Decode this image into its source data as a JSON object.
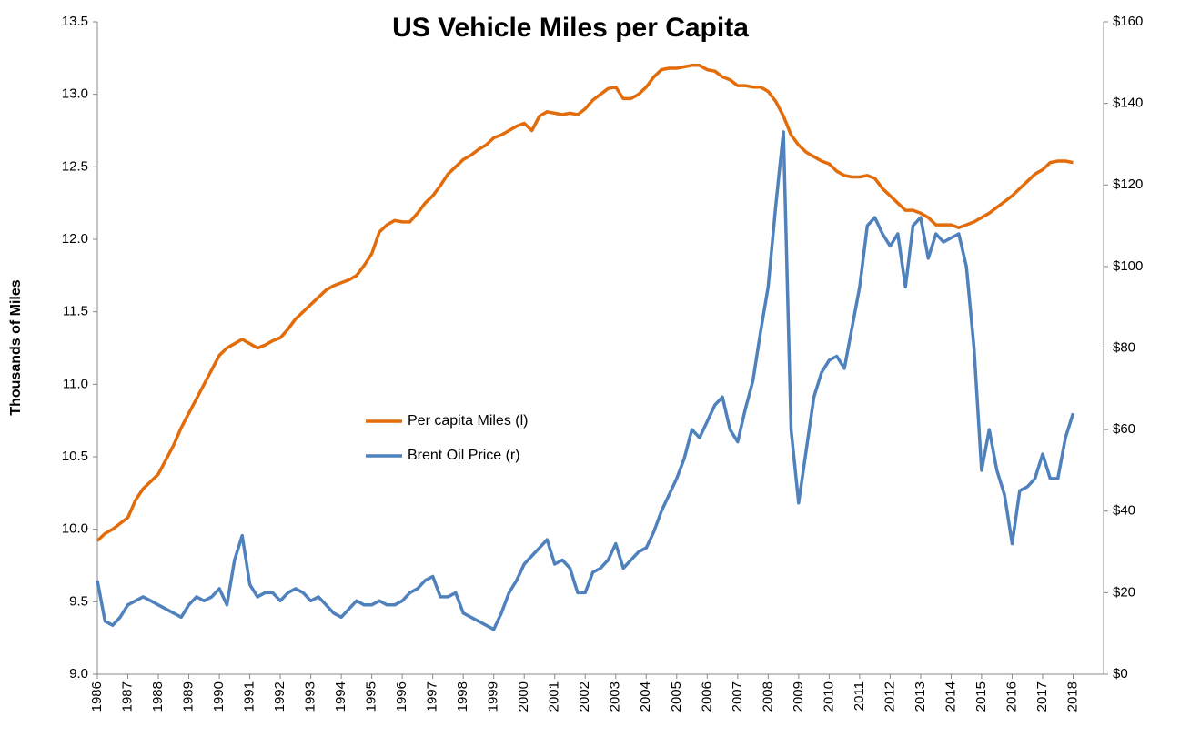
{
  "chart_data": {
    "type": "line",
    "title": "US Vehicle Miles per Capita",
    "y_label": "Thousands of Miles",
    "x": [
      1986,
      1986.25,
      1986.5,
      1986.75,
      1987,
      1987.25,
      1987.5,
      1987.75,
      1988,
      1988.25,
      1988.5,
      1988.75,
      1989,
      1989.25,
      1989.5,
      1989.75,
      1990,
      1990.25,
      1990.5,
      1990.75,
      1991,
      1991.25,
      1991.5,
      1991.75,
      1992,
      1992.25,
      1992.5,
      1992.75,
      1993,
      1993.25,
      1993.5,
      1993.75,
      1994,
      1994.25,
      1994.5,
      1994.75,
      1995,
      1995.25,
      1995.5,
      1995.75,
      1996,
      1996.25,
      1996.5,
      1996.75,
      1997,
      1997.25,
      1997.5,
      1997.75,
      1998,
      1998.25,
      1998.5,
      1998.75,
      1999,
      1999.25,
      1999.5,
      1999.75,
      2000,
      2000.25,
      2000.5,
      2000.75,
      2001,
      2001.25,
      2001.5,
      2001.75,
      2002,
      2002.25,
      2002.5,
      2002.75,
      2003,
      2003.25,
      2003.5,
      2003.75,
      2004,
      2004.25,
      2004.5,
      2004.75,
      2005,
      2005.25,
      2005.5,
      2005.75,
      2006,
      2006.25,
      2006.5,
      2006.75,
      2007,
      2007.25,
      2007.5,
      2007.75,
      2008,
      2008.25,
      2008.5,
      2008.75,
      2009,
      2009.25,
      2009.5,
      2009.75,
      2010,
      2010.25,
      2010.5,
      2010.75,
      2011,
      2011.25,
      2011.5,
      2011.75,
      2012,
      2012.25,
      2012.5,
      2012.75,
      2013,
      2013.25,
      2013.5,
      2013.75,
      2014,
      2014.25,
      2014.5,
      2014.75,
      2015,
      2015.25,
      2015.5,
      2015.75,
      2016,
      2016.25,
      2016.5,
      2016.75,
      2017,
      2017.25,
      2017.5,
      2017.75,
      2018
    ],
    "series": [
      {
        "name": "Per capita Miles (l)",
        "color": "#e36c0a",
        "axis": "y",
        "values": [
          9.92,
          9.97,
          10.0,
          10.04,
          10.08,
          10.2,
          10.28,
          10.33,
          10.38,
          10.48,
          10.58,
          10.7,
          10.8,
          10.9,
          11.0,
          11.1,
          11.2,
          11.25,
          11.28,
          11.31,
          11.28,
          11.25,
          11.27,
          11.3,
          11.32,
          11.38,
          11.45,
          11.5,
          11.55,
          11.6,
          11.65,
          11.68,
          11.7,
          11.72,
          11.75,
          11.82,
          11.9,
          12.05,
          12.1,
          12.13,
          12.12,
          12.12,
          12.18,
          12.25,
          12.3,
          12.37,
          12.45,
          12.5,
          12.55,
          12.58,
          12.62,
          12.65,
          12.7,
          12.72,
          12.75,
          12.78,
          12.8,
          12.75,
          12.85,
          12.88,
          12.87,
          12.86,
          12.87,
          12.86,
          12.9,
          12.96,
          13.0,
          13.04,
          13.05,
          12.97,
          12.97,
          13.0,
          13.05,
          13.12,
          13.17,
          13.18,
          13.18,
          13.19,
          13.2,
          13.2,
          13.17,
          13.16,
          13.12,
          13.1,
          13.06,
          13.06,
          13.05,
          13.05,
          13.02,
          12.95,
          12.85,
          12.72,
          12.65,
          12.6,
          12.57,
          12.54,
          12.52,
          12.47,
          12.44,
          12.43,
          12.43,
          12.44,
          12.42,
          12.35,
          12.3,
          12.25,
          12.2,
          12.2,
          12.18,
          12.15,
          12.1,
          12.1,
          12.1,
          12.08,
          12.1,
          12.12,
          12.15,
          12.18,
          12.22,
          12.26,
          12.3,
          12.35,
          12.4,
          12.45,
          12.48,
          12.53,
          12.54,
          12.54,
          12.53
        ]
      },
      {
        "name": "Brent Oil Price (r)",
        "color": "#4f81bd",
        "axis": "y2",
        "values": [
          23,
          13,
          12,
          14,
          17,
          18,
          19,
          18,
          17,
          16,
          15,
          14,
          17,
          19,
          18,
          19,
          21,
          17,
          28,
          34,
          22,
          19,
          20,
          20,
          18,
          20,
          21,
          20,
          18,
          19,
          17,
          15,
          14,
          16,
          18,
          17,
          17,
          18,
          17,
          17,
          18,
          20,
          21,
          23,
          24,
          19,
          19,
          20,
          15,
          14,
          13,
          12,
          11,
          15,
          20,
          23,
          27,
          29,
          31,
          33,
          27,
          28,
          26,
          20,
          20,
          25,
          26,
          28,
          32,
          26,
          28,
          30,
          31,
          35,
          40,
          44,
          48,
          53,
          60,
          58,
          62,
          66,
          68,
          60,
          57,
          65,
          72,
          84,
          95,
          115,
          133,
          60,
          42,
          55,
          68,
          74,
          77,
          78,
          75,
          85,
          95,
          110,
          112,
          108,
          105,
          108,
          95,
          110,
          112,
          102,
          108,
          106,
          107,
          108,
          100,
          80,
          50,
          60,
          50,
          44,
          32,
          45,
          46,
          48,
          54,
          48,
          48,
          58,
          64
        ]
      }
    ],
    "xlim": [
      1986,
      2019
    ],
    "xticks": [
      1986,
      1987,
      1988,
      1989,
      1990,
      1991,
      1992,
      1993,
      1994,
      1995,
      1996,
      1997,
      1998,
      1999,
      2000,
      2001,
      2002,
      2003,
      2004,
      2005,
      2006,
      2007,
      2008,
      2009,
      2010,
      2011,
      2012,
      2013,
      2014,
      2015,
      2016,
      2017,
      2018
    ],
    "ylim": [
      9,
      13.5
    ],
    "yticks": [
      {
        "value": 9,
        "label": "9.0"
      },
      9.5,
      {
        "value": 10,
        "label": "10.0"
      },
      10.5,
      {
        "value": 11,
        "label": "11.0"
      },
      11.5,
      {
        "value": 12,
        "label": "12.0"
      },
      12.5,
      {
        "value": 13,
        "label": "13.0"
      },
      13.5
    ],
    "y2lim": [
      0,
      160
    ],
    "y2ticks": [
      {
        "value": 0,
        "label": "$0"
      },
      {
        "value": 20,
        "label": "$20"
      },
      {
        "value": 40,
        "label": "$40"
      },
      {
        "value": 60,
        "label": "$60"
      },
      {
        "value": 80,
        "label": "$80"
      },
      {
        "value": 100,
        "label": "$100"
      },
      {
        "value": 120,
        "label": "$120"
      },
      {
        "value": 140,
        "label": "$140"
      },
      {
        "value": 160,
        "label": "$160"
      }
    ],
    "grid": false,
    "legend": "center-left"
  }
}
